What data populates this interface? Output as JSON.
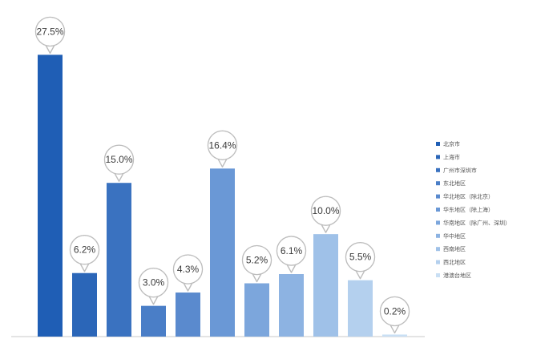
{
  "chart_data": {
    "type": "bar",
    "categories": [
      "北京市",
      "上海市",
      "广州市深圳市",
      "东北地区",
      "华北地区（除北京）",
      "华东地区（除上海）",
      "华南地区（除广州、深圳）",
      "华中地区",
      "西南地区",
      "西北地区",
      "港澳台地区"
    ],
    "values": [
      27.5,
      6.2,
      15.0,
      3.0,
      4.3,
      16.4,
      5.2,
      6.1,
      10.0,
      5.5,
      0.2
    ],
    "value_labels": [
      "27.5%",
      "6.2%",
      "15.0%",
      "3.0%",
      "4.3%",
      "16.4%",
      "5.2%",
      "6.1%",
      "10.0%",
      "5.5%",
      "0.2%"
    ],
    "colors": [
      "#1f5eb5",
      "#2b66b8",
      "#3a72c0",
      "#4a7ec7",
      "#5a8ace",
      "#6a98d6",
      "#7ca6dc",
      "#8db3e2",
      "#9fc1e8",
      "#b4d0ee",
      "#c9dff4"
    ],
    "ylim": [
      0,
      28
    ],
    "legend_position": "right",
    "grid": false,
    "title": "",
    "xlabel": "",
    "ylabel": ""
  }
}
